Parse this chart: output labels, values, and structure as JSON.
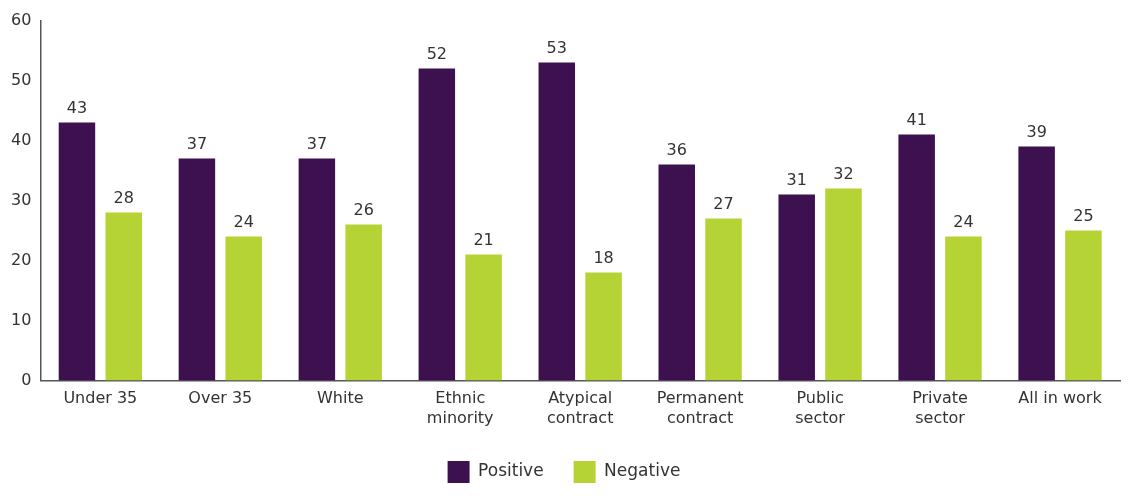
{
  "chart_data": {
    "type": "bar",
    "categories": [
      "Under 35",
      "Over 35",
      "White",
      "Ethnic minority",
      "Atypical contract",
      "Permanent contract",
      "Public sector",
      "Private sector",
      "All in work"
    ],
    "series": [
      {
        "name": "Positive",
        "color": "#3d1150",
        "values": [
          43,
          37,
          37,
          52,
          53,
          36,
          31,
          41,
          39
        ]
      },
      {
        "name": "Negative",
        "color": "#b5d334",
        "values": [
          28,
          24,
          26,
          21,
          18,
          27,
          32,
          24,
          25
        ]
      }
    ],
    "ylim": [
      0,
      60
    ],
    "yticks": [
      0,
      10,
      20,
      30,
      40,
      50,
      60
    ],
    "grid": false,
    "legend": "bottom",
    "data_labels": true
  }
}
